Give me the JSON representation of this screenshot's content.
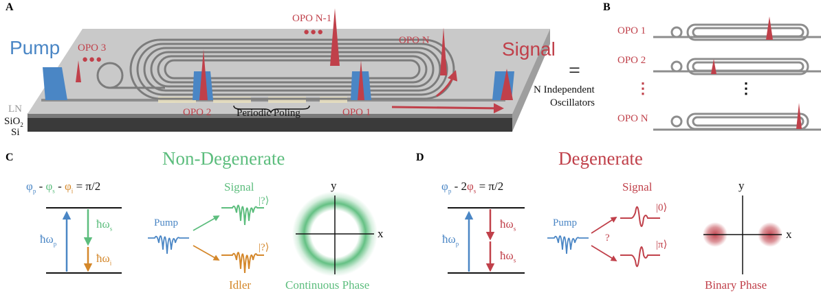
{
  "panels": {
    "a": "A",
    "b": "B",
    "c": "C",
    "d": "D"
  },
  "panel_a": {
    "pump": "Pump",
    "signal": "Signal",
    "opo1": "OPO 1",
    "opo2": "OPO 2",
    "opo3": "OPO 3",
    "opo_n_minus_1": "OPO N-1",
    "opo_n": "OPO N",
    "periodic_poling": "Periodic Poling",
    "layer_ln": "LN",
    "layer_sio2": "SiO",
    "layer_sio2_sub": "2",
    "layer_si": "Si",
    "dots": "●●●"
  },
  "panel_b": {
    "equals": "=",
    "independent_line1": "N Independent",
    "independent_line2": "Oscillators",
    "opo1": "OPO 1",
    "opo2": "OPO 2",
    "opo_n": "OPO N",
    "vdots_red": "⋮",
    "vdots_black": "⋮"
  },
  "panel_c": {
    "title": "Non-Degenerate",
    "eq_phi_p": "φ",
    "eq_sub_p": "p",
    "eq_minus1": " - ",
    "eq_phi_s": "φ",
    "eq_sub_s": "s",
    "eq_minus2": " - ",
    "eq_phi_i": "φ",
    "eq_sub_i": "i",
    "eq_rhs": " = π/2",
    "hw_p": "ħω",
    "hw_p_sub": "p",
    "hw_s": "ħω",
    "hw_s_sub": "s",
    "hw_i": "ħω",
    "hw_i_sub": "i",
    "pump": "Pump",
    "signal": "Signal",
    "idler": "Idler",
    "ket_signal": "|?⟩",
    "ket_idler": "|?⟩",
    "axis_y": "y",
    "axis_x": "x",
    "phase_label": "Continuous Phase"
  },
  "panel_d": {
    "title": "Degenerate",
    "eq_phi_p": "φ",
    "eq_sub_p": "p",
    "eq_minus": " - 2",
    "eq_phi_s": "φ",
    "eq_sub_s": "s",
    "eq_rhs": " = π/2",
    "hw_p": "ħω",
    "hw_p_sub": "p",
    "hw_s1": "ħω",
    "hw_s1_sub": "s",
    "hw_s2": "ħω",
    "hw_s2_sub": "s",
    "pump": "Pump",
    "signal": "Signal",
    "question": "?",
    "ket_zero": "|0⟩",
    "ket_pi": "|π⟩",
    "axis_y": "y",
    "axis_x": "x",
    "phase_label": "Binary Phase"
  },
  "colors": {
    "red": "#c0404a",
    "blue": "#4a86c5",
    "green": "#5cbd7d",
    "orange": "#d4872a",
    "chip": "#c8c8c8",
    "waveguide": "#8d8d8d"
  }
}
